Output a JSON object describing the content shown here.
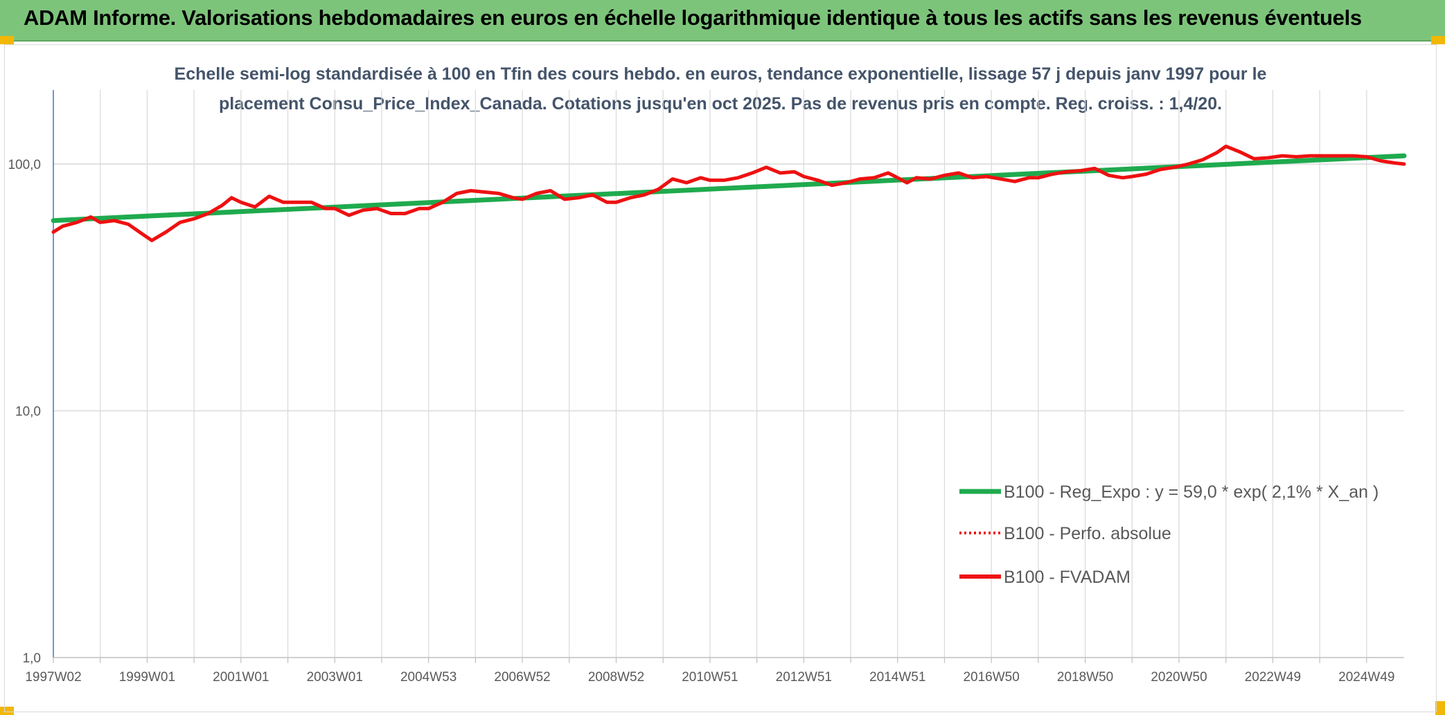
{
  "page": {
    "banner_title": "ADAM Informe. Valorisations hebdomadaires en euros en échelle logarithmique identique à tous les actifs sans les revenus éventuels"
  },
  "colors": {
    "banner_bg": "#7dc47b",
    "trend": "#1faa4e",
    "fvadam": "#ee1111",
    "perfo": "#ee1111",
    "grid": "#d9d9d9",
    "axis": "#4472c4",
    "accent_corner": "#f2b705"
  },
  "chart_data": {
    "type": "line",
    "title": "",
    "subtitle_lines": [
      "Echelle semi-log standardisée à 100 en Tfin des cours hebdo. en euros, tendance exponentielle, lissage 57 j depuis janv 1997 pour le",
      "placement Consu_Price_Index_Canada. Cotations jusqu'en oct 2025. Pas de revenus pris en compte. Reg. croiss. : 1,4/20."
    ],
    "y_scale": "log",
    "ylim": [
      1,
      200
    ],
    "y_ticks": [
      {
        "value": 1,
        "label": "1,0"
      },
      {
        "value": 10,
        "label": "10,0"
      },
      {
        "value": 100,
        "label": "100,0"
      }
    ],
    "x_range": [
      1997.0,
      2025.8
    ],
    "x_ticks": [
      {
        "value": 1997.0,
        "label": "1997W02"
      },
      {
        "value": 1999.0,
        "label": "1999W01"
      },
      {
        "value": 2001.0,
        "label": "2001W01"
      },
      {
        "value": 2003.0,
        "label": "2003W01"
      },
      {
        "value": 2005.0,
        "label": "2004W53"
      },
      {
        "value": 2007.0,
        "label": "2006W52"
      },
      {
        "value": 2009.0,
        "label": "2008W52"
      },
      {
        "value": 2011.0,
        "label": "2010W51"
      },
      {
        "value": 2013.0,
        "label": "2012W51"
      },
      {
        "value": 2015.0,
        "label": "2014W51"
      },
      {
        "value": 2017.0,
        "label": "2016W50"
      },
      {
        "value": 2019.0,
        "label": "2018W50"
      },
      {
        "value": 2021.0,
        "label": "2020W50"
      },
      {
        "value": 2023.0,
        "label": "2022W49"
      },
      {
        "value": 2025.0,
        "label": "2024W49"
      }
    ],
    "grid": true,
    "legend_position": "bottom-right",
    "series": [
      {
        "name": "B100 - Reg_Expo : y = 59,0 * exp( 2,1% *  X_an )",
        "style": "solid-thick",
        "color": "#1faa4e",
        "x": [
          1997.0,
          2025.8
        ],
        "y": [
          59.0,
          108.0
        ]
      },
      {
        "name": "B100 - Perfo. absolue",
        "style": "dotted",
        "color": "#ee1111",
        "x": [],
        "y": []
      },
      {
        "name": "B100 - FVADAM",
        "style": "solid",
        "color": "#ee1111",
        "x": [
          1997.0,
          1997.2,
          1997.5,
          1997.8,
          1998.0,
          1998.3,
          1998.6,
          1998.9,
          1999.1,
          1999.4,
          1999.7,
          2000.0,
          2000.3,
          2000.6,
          2000.8,
          2001.0,
          2001.3,
          2001.6,
          2001.9,
          2002.2,
          2002.5,
          2002.8,
          2003.0,
          2003.3,
          2003.6,
          2003.9,
          2004.2,
          2004.5,
          2004.8,
          2005.0,
          2005.3,
          2005.6,
          2005.9,
          2006.2,
          2006.5,
          2006.8,
          2007.0,
          2007.3,
          2007.6,
          2007.9,
          2008.2,
          2008.5,
          2008.8,
          2009.0,
          2009.3,
          2009.6,
          2009.9,
          2010.2,
          2010.5,
          2010.8,
          2011.0,
          2011.3,
          2011.6,
          2011.9,
          2012.2,
          2012.5,
          2012.8,
          2013.0,
          2013.3,
          2013.6,
          2013.9,
          2014.2,
          2014.5,
          2014.8,
          2015.0,
          2015.2,
          2015.4,
          2015.7,
          2016.0,
          2016.3,
          2016.6,
          2016.9,
          2017.2,
          2017.5,
          2017.8,
          2018.0,
          2018.3,
          2018.6,
          2018.9,
          2019.2,
          2019.5,
          2019.8,
          2020.0,
          2020.3,
          2020.6,
          2020.9,
          2021.2,
          2021.5,
          2021.8,
          2022.0,
          2022.3,
          2022.6,
          2022.9,
          2023.2,
          2023.5,
          2023.8,
          2024.1,
          2024.4,
          2024.7,
          2025.0,
          2025.3,
          2025.6,
          2025.8
        ],
        "y": [
          53,
          56,
          58,
          61,
          58,
          59,
          57,
          52,
          49,
          53,
          58,
          60,
          63,
          68,
          73,
          70,
          67,
          74,
          70,
          70,
          70,
          66,
          66,
          62,
          65,
          66,
          63,
          63,
          66,
          66,
          70,
          76,
          78,
          77,
          76,
          73,
          72,
          76,
          78,
          72,
          73,
          75,
          70,
          70,
          73,
          75,
          79,
          87,
          84,
          88,
          86,
          86,
          88,
          92,
          97,
          92,
          93,
          89,
          86,
          82,
          84,
          87,
          88,
          92,
          88,
          84,
          88,
          87,
          90,
          92,
          88,
          89,
          87,
          85,
          88,
          88,
          91,
          93,
          94,
          96,
          90,
          88,
          89,
          91,
          95,
          97,
          100,
          104,
          111,
          118,
          112,
          105,
          106,
          108,
          107,
          108,
          108,
          108,
          108,
          107,
          103,
          101,
          100
        ]
      }
    ]
  }
}
